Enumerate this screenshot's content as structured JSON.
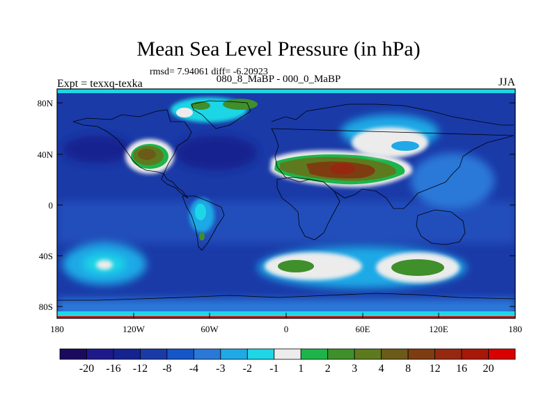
{
  "title": "Mean Sea Level Pressure (in hPa)",
  "stats": "rmsd= 7.94061 diff= -6.20923",
  "subtitle": "080_8_MaBP - 000_0_MaBP",
  "expt_label": "Expt = texxq-texka",
  "season": "JJA",
  "lat_ticks": [
    "80N",
    "40N",
    "0",
    "40S",
    "80S"
  ],
  "lon_ticks": [
    "180",
    "120W",
    "60W",
    "0",
    "60E",
    "120E",
    "180"
  ],
  "colorbar": {
    "levels": [
      "-20",
      "-16",
      "-12",
      "-8",
      "-4",
      "-3",
      "-2",
      "-1",
      "1",
      "2",
      "3",
      "4",
      "8",
      "12",
      "16",
      "20"
    ],
    "colors": [
      "#1a0a5e",
      "#1e1a8c",
      "#14238f",
      "#1a3aa8",
      "#1556c8",
      "#2a78d8",
      "#1fa9e6",
      "#1fd6e6",
      "#ececec",
      "#1db54a",
      "#3f8f2b",
      "#5e7a1f",
      "#6b5a18",
      "#7e3d10",
      "#962810",
      "#a81808",
      "#d80000"
    ]
  },
  "palette": {
    "background": "#1a3aa8",
    "frame": "#000000"
  }
}
